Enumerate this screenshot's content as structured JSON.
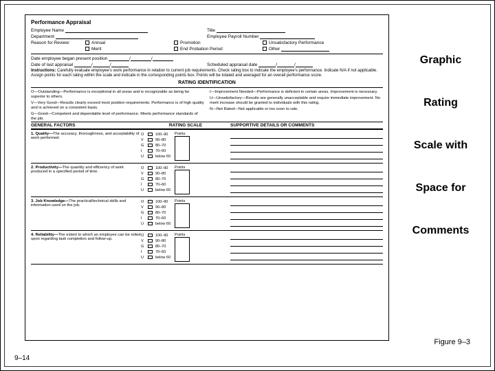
{
  "titleWords": [
    "Graphic",
    "Rating",
    "Scale with",
    "Space for",
    "Comments"
  ],
  "figureLabel": "Figure 9–3",
  "pageNum": "9–14",
  "form": {
    "heading": "Performance Appraisal",
    "labels": {
      "empName": "Employee Name",
      "title": "Title",
      "dept": "Department",
      "payroll": "Employee Payroll Number",
      "reason": "Reason for Review:",
      "annual": "Annual",
      "promotion": "Promotion",
      "unsat": "Unsatisfactory Performance",
      "merit": "Merit",
      "endProb": "End Probation Period",
      "other": "Other",
      "began": "Date employee began present position",
      "lastAppr": "Date of last appraisal",
      "sched": "Scheduled appraisal date",
      "instrLabel": "Instructions:",
      "instr": "Carefully evaluate employee's work performance in relation to current job requirements. Check rating box to indicate the employee's performance. Indicate N/A if not applicable. Assign points for each rating within the scale and indicate in the corresponding points box. Points will be totaled and averaged for an overall performance score.",
      "ratingIdHdr": "RATING IDENTIFICATION",
      "oDef": "O—Outstanding—Performance is exceptional in all areas and is recognizable as being far superior to others.",
      "vDef": "V—Very Good—Results clearly exceed most position requirements. Performance is of high quality and is achieved on a consistent basis.",
      "gDef": "G—Good—Competent and dependable level of performance. Meets performance standards of the job.",
      "iDef": "I—Improvement Needed—Performance is deficient in certain areas. Improvement is necessary.",
      "uDef": "U—Unsatisfactory—Results are generally unacceptable and require immediate improvement. No merit increase should be granted to individuals with this rating.",
      "nDef": "N—Not Rated—Not applicable or too soon to rate.",
      "genFactors": "GENERAL FACTORS",
      "ratingScale": "RATING SCALE",
      "supportive": "SUPPORTIVE DETAILS OR COMMENTS",
      "points": "Points"
    },
    "scaleLetters": [
      "O",
      "V",
      "G",
      "I",
      "U"
    ],
    "scaleRanges": [
      "100–90",
      "90–80",
      "80–70",
      "70–60",
      "below 60"
    ],
    "factors": [
      {
        "num": "1.",
        "name": "Quality—",
        "desc": "The accuracy, thoroughness, and acceptability of work performed."
      },
      {
        "num": "2.",
        "name": "Productivity—",
        "desc": "The quantity and efficiency of work produced in a specified period of time."
      },
      {
        "num": "3.",
        "name": "Job Knowledge—",
        "desc": "The practical/technical skills and information used on the job."
      },
      {
        "num": "4.",
        "name": "Reliability—",
        "desc": "The extent to which an employee can be relied upon regarding task completion and follow-up."
      }
    ]
  }
}
